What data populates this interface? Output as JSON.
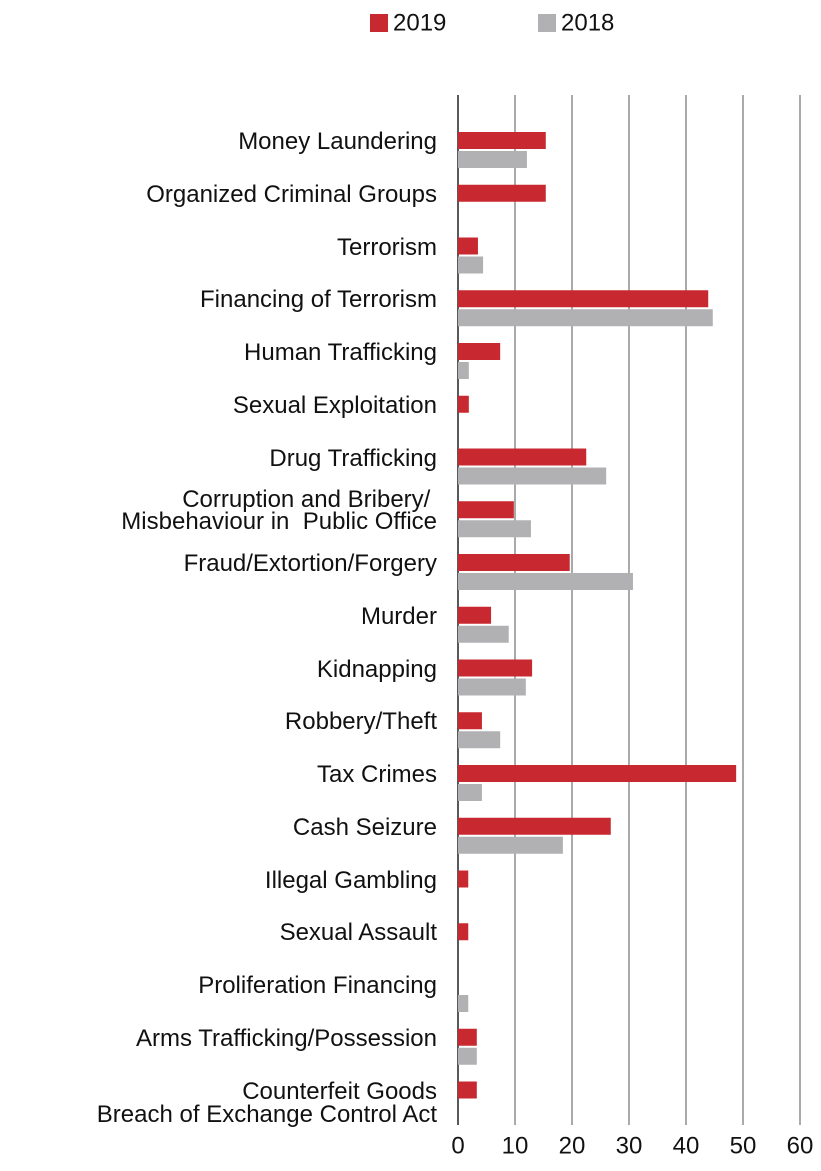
{
  "chart_data": {
    "type": "bar",
    "orientation": "horizontal",
    "categories": [
      "Money Laundering",
      "Organized Criminal Groups",
      "Terrorism",
      "Financing of Terrorism",
      "Human Trafficking",
      "Sexual Exploitation",
      "Drug Trafficking",
      "Corruption and Bribery/ \nMisbehaviour in  Public Office",
      "Fraud/Extortion/Forgery",
      "Murder",
      "Kidnapping",
      "Robbery/Theft",
      "Tax Crimes",
      "Cash Seizure",
      "Illegal Gambling",
      "Sexual Assault",
      "Proliferation Financing",
      "Arms Trafficking/Possession",
      "Counterfeit Goods",
      "Breach of Exchange Control Act"
    ],
    "series": [
      {
        "name": "2019",
        "color": "#c8282f",
        "values": [
          15.4,
          15.4,
          3.5,
          43.9,
          7.4,
          1.9,
          22.5,
          9.8,
          19.6,
          5.8,
          13,
          4.2,
          48.8,
          26.8,
          1.8,
          1.8,
          null,
          3.3,
          3.3,
          null
        ]
      },
      {
        "name": "2018",
        "color": "#b1b1b4",
        "values": [
          12.1,
          null,
          4.4,
          44.7,
          1.9,
          null,
          26,
          12.8,
          30.7,
          8.9,
          11.9,
          7.4,
          4.2,
          18.4,
          null,
          null,
          1.8,
          3.3,
          null,
          null
        ]
      }
    ],
    "xlim": [
      0,
      60
    ],
    "xticks": [
      0,
      10,
      20,
      30,
      40,
      50,
      60
    ],
    "grid": true,
    "legend": "top"
  }
}
